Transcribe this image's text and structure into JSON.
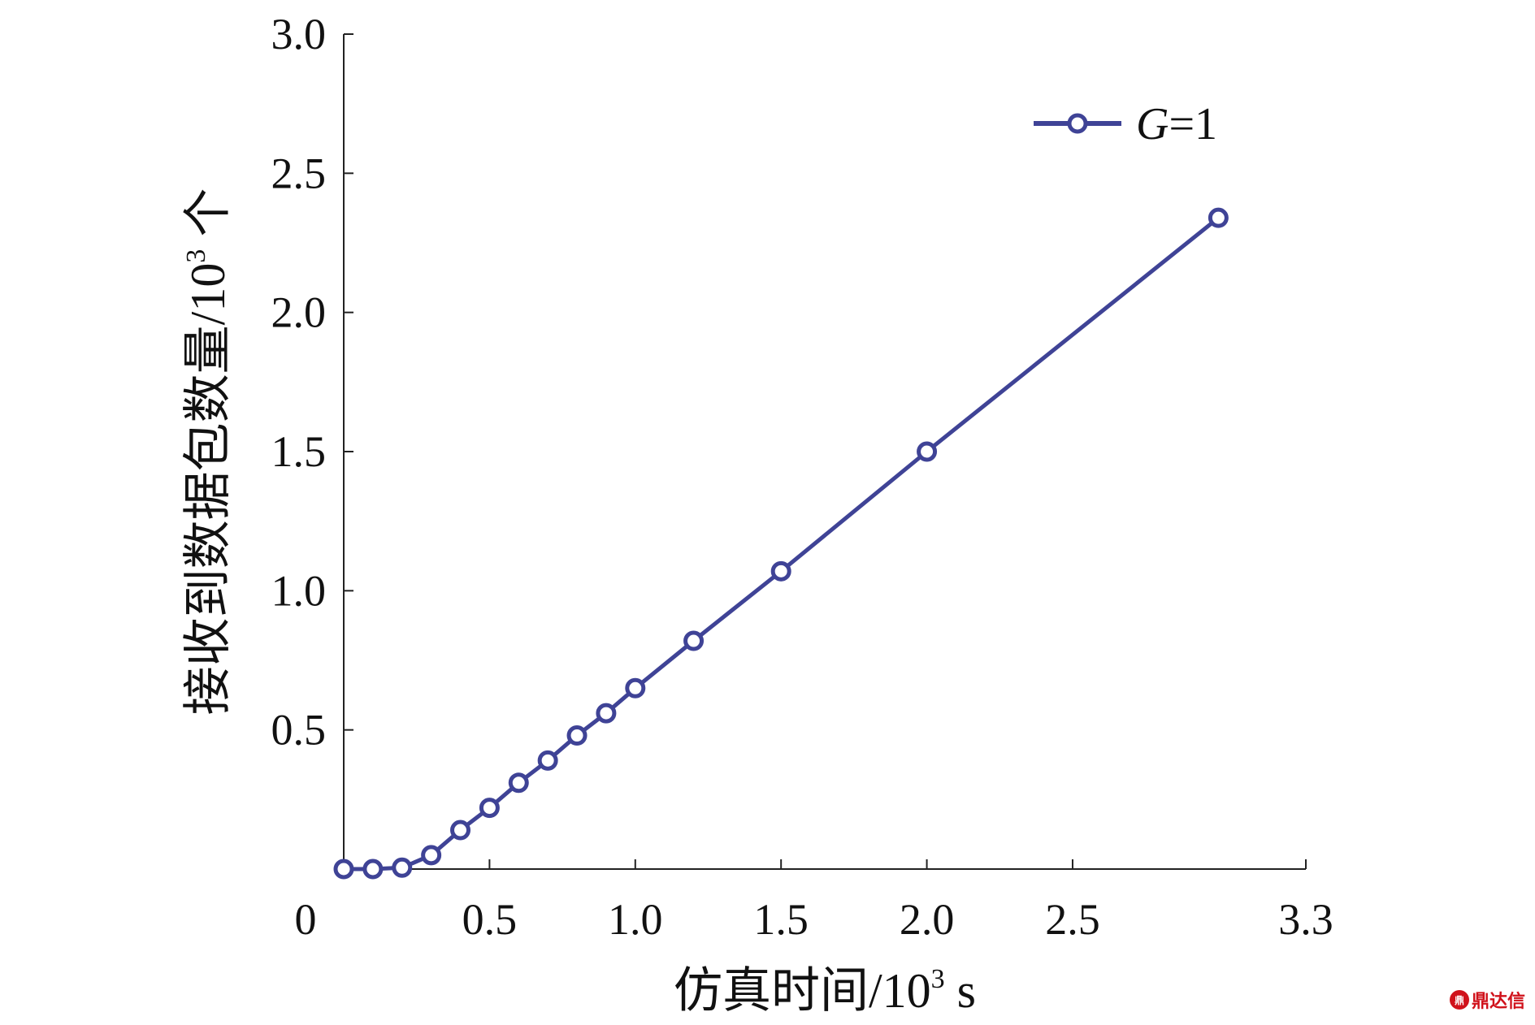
{
  "chart_data": {
    "type": "line",
    "xlabel_prefix": "仿真时间/10",
    "xlabel_exp": "3",
    "xlabel_suffix": " s",
    "ylabel_prefix": "接收到数据包数量/10",
    "ylabel_exp": "3",
    "ylabel_suffix": " 个",
    "xlim": [
      0,
      3.3
    ],
    "ylim": [
      0,
      3.0
    ],
    "x_ticks": [
      0.5,
      1.0,
      1.5,
      2.0,
      2.5,
      3.3
    ],
    "x_tick_labels": [
      "0.5",
      "1.0",
      "1.5",
      "2.0",
      "2.5",
      "3.3"
    ],
    "origin_label": "0",
    "y_ticks": [
      0.5,
      1.0,
      1.5,
      2.0,
      2.5,
      3.0
    ],
    "y_tick_labels": [
      "0.5",
      "1.0",
      "1.5",
      "2.0",
      "2.5",
      "3.0"
    ],
    "grid": false,
    "legend_position": "top-right",
    "series": [
      {
        "name_italic": "G",
        "name_rest": "=1",
        "color": "#3f4396",
        "marker": "circle",
        "x": [
          0.0,
          0.1,
          0.2,
          0.3,
          0.4,
          0.5,
          0.6,
          0.7,
          0.8,
          0.9,
          1.0,
          1.2,
          1.5,
          2.0,
          3.0
        ],
        "y": [
          0.0,
          0.0,
          0.005,
          0.05,
          0.14,
          0.22,
          0.31,
          0.39,
          0.48,
          0.56,
          0.65,
          0.82,
          1.07,
          1.5,
          2.34
        ]
      }
    ]
  },
  "watermark": {
    "icon": "logo-icon",
    "icon_text": "鼎",
    "text": "鼎达信"
  }
}
